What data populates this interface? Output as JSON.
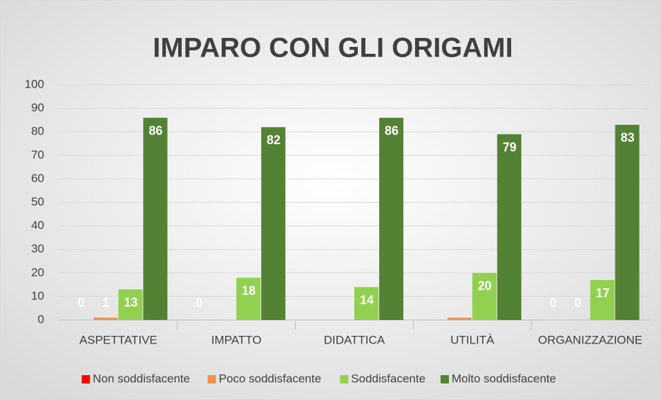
{
  "chart_data": {
    "type": "bar",
    "title": "IMPARO CON GLI ORIGAMI",
    "categories": [
      "ASPETTATIVE",
      "IMPATTO",
      "DIDATTICA",
      "UTILITÀ",
      "ORGANIZZAZIONE"
    ],
    "series": [
      {
        "name": "Non soddisfacente",
        "color": "#ff0000",
        "values": [
          0,
          0,
          0,
          0,
          0
        ],
        "value_labels": [
          "0",
          "0",
          null,
          null,
          "0"
        ]
      },
      {
        "name": "Poco soddisfacente",
        "color": "#f4904c",
        "values": [
          1,
          0,
          0,
          1,
          0
        ],
        "value_labels": [
          "1",
          null,
          null,
          null,
          "0"
        ]
      },
      {
        "name": "Soddisfacente",
        "color": "#92d050",
        "values": [
          13,
          18,
          14,
          20,
          17
        ],
        "value_labels": [
          "13",
          "18",
          "14",
          "20",
          "17"
        ]
      },
      {
        "name": "Molto soddisfacente",
        "color": "#548235",
        "values": [
          86,
          82,
          86,
          79,
          83
        ],
        "value_labels": [
          "86",
          "82",
          "86",
          "79",
          "83"
        ]
      }
    ],
    "ylim": [
      0,
      100
    ],
    "yticks": [
      0,
      10,
      20,
      30,
      40,
      50,
      60,
      70,
      80,
      90,
      100
    ],
    "grid": true,
    "legend": "bottom"
  }
}
